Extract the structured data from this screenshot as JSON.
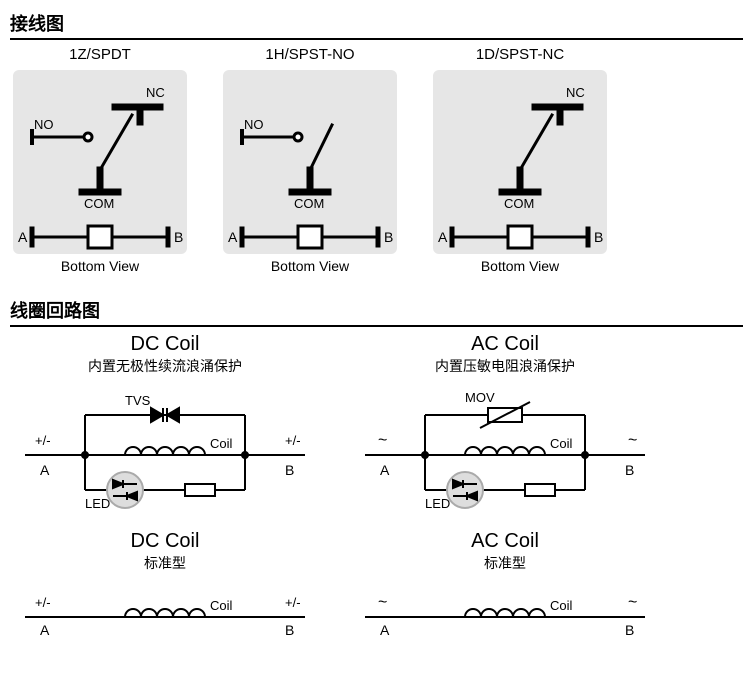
{
  "sections": {
    "wiring_title": "接线图",
    "coil_title": "线圈回路图"
  },
  "wiring": [
    {
      "label": "1Z/SPDT",
      "nc": "NC",
      "no": "NO",
      "com": "COM",
      "a": "A",
      "b": "B",
      "bottom": "Bottom View",
      "showNC": true,
      "showNO": true
    },
    {
      "label": "1H/SPST-NO",
      "nc": "",
      "no": "NO",
      "com": "COM",
      "a": "A",
      "b": "B",
      "bottom": "Bottom View",
      "showNC": false,
      "showNO": true
    },
    {
      "label": "1D/SPST-NC",
      "nc": "NC",
      "no": "",
      "com": "COM",
      "a": "A",
      "b": "B",
      "bottom": "Bottom View",
      "showNC": true,
      "showNO": false
    }
  ],
  "coils": {
    "dc_protected": {
      "title": "DC Coil",
      "sub": "内置无极性续流浪涌保护",
      "tvs": "TVS",
      "coil": "Coil",
      "led": "LED",
      "a": "A",
      "b": "B",
      "sign": "+/-"
    },
    "ac_protected": {
      "title": "AC Coil",
      "sub": "内置压敏电阻浪涌保护",
      "mov": "MOV",
      "coil": "Coil",
      "led": "LED",
      "a": "A",
      "b": "B",
      "sign": "~"
    },
    "dc_std": {
      "title": "DC Coil",
      "sub": "标准型",
      "coil": "Coil",
      "a": "A",
      "b": "B",
      "sign": "+/-"
    },
    "ac_std": {
      "title": "AC Coil",
      "sub": "标准型",
      "coil": "Coil",
      "a": "A",
      "b": "B",
      "sign": "~"
    }
  },
  "style": {
    "panel_bg": "#e6e6e6",
    "stroke": "#000000",
    "line_w": 3,
    "thick_w": 7,
    "bg": "#ffffff"
  }
}
